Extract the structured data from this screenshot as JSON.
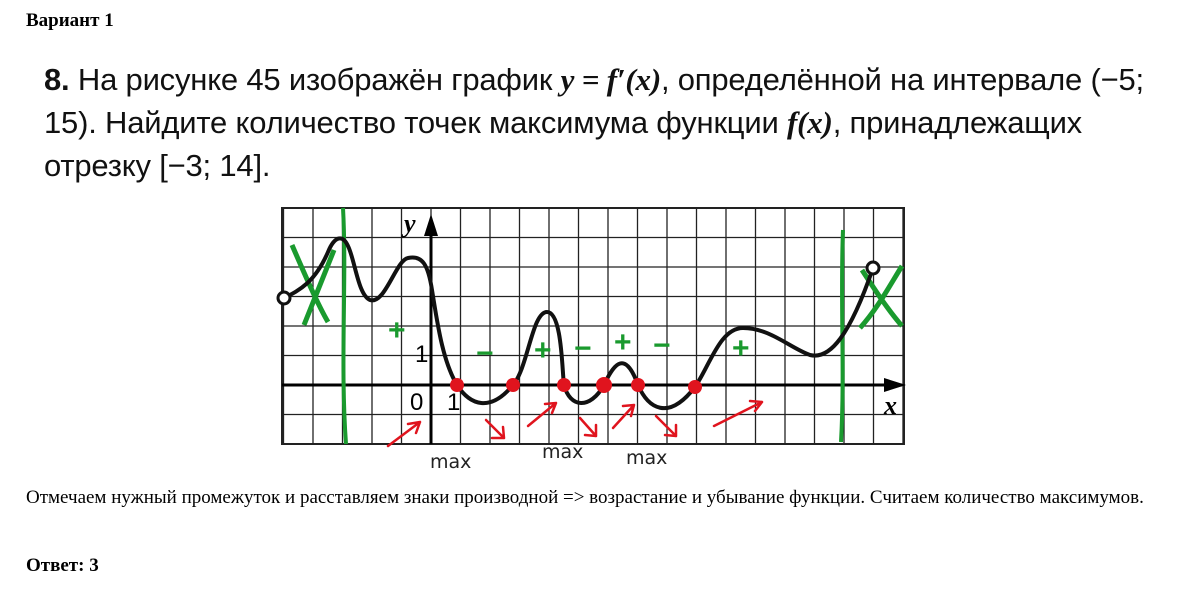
{
  "header": {
    "variant": "Вариант 1"
  },
  "problem": {
    "number": "8.",
    "t1": " На рисунке 45 изображён график ",
    "formula": "y = f′(x)",
    "t2": ", определённой на интервале ",
    "interval": "(−5; 15)",
    "t3": ". Найдите количество точек максимума функции ",
    "fx": "f(x)",
    "t4": ", принадлежащих отрезку ",
    "segment": "[−3; 14]",
    "t5": "."
  },
  "figure": {
    "axis_x": "x",
    "axis_y": "y",
    "origin": "0",
    "one_x": "1",
    "one_y": "1",
    "sign_marks": [
      "+",
      "−",
      "+",
      "−",
      "+",
      "−",
      "+"
    ],
    "max_labels": [
      "max",
      "max",
      "max"
    ],
    "colors": {
      "curve": "#111111",
      "annotation_green": "#1a9a2e",
      "annotation_red": "#e0141e",
      "grid": "#222222"
    }
  },
  "explanation": "Отмечаем нужный промежуток и расставляем знаки производной => возрастание и убывание функции. Считаем количество максимумов.",
  "answer": "Ответ: 3"
}
